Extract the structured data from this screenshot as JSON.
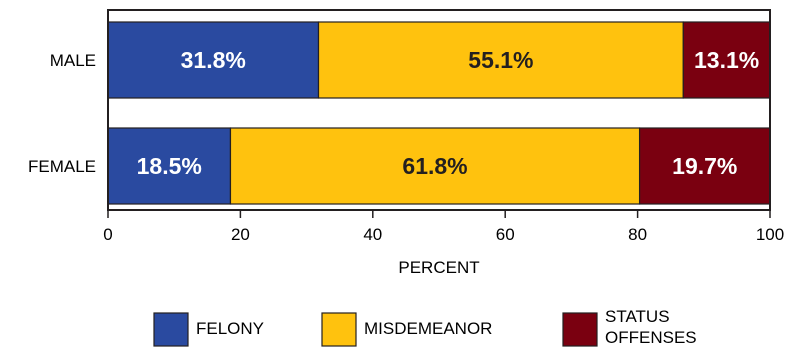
{
  "chart_data": {
    "type": "bar",
    "orientation": "horizontal",
    "stacked": true,
    "categories": [
      "MALE",
      "FEMALE"
    ],
    "series": [
      {
        "name": "FELONY",
        "values": [
          31.8,
          18.5
        ],
        "labels": [
          "31.8%",
          "18.5%"
        ],
        "color": "#2a4aa0",
        "label_color": "#ffffff"
      },
      {
        "name": "MISDEMEANOR",
        "values": [
          55.1,
          61.8
        ],
        "labels": [
          "55.1%",
          "61.8%"
        ],
        "color": "#ffc20e",
        "label_color": "#231f20"
      },
      {
        "name": "STATUS OFFENSES",
        "values": [
          13.1,
          19.7
        ],
        "labels": [
          "13.1%",
          "19.7%"
        ],
        "color": "#7a0010",
        "label_color": "#ffffff"
      }
    ],
    "xlabel": "PERCENT",
    "ylabel": "",
    "xlim": [
      0,
      100
    ],
    "xticks": [
      "0",
      "20",
      "40",
      "60",
      "80",
      "100"
    ],
    "grid": false,
    "legend_position": "bottom"
  }
}
